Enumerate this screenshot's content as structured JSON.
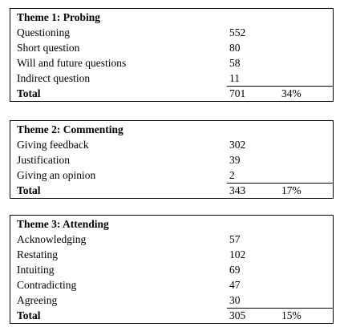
{
  "themes": [
    {
      "title": "Theme 1: Probing",
      "rows": [
        {
          "label": "Questioning",
          "count": 552
        },
        {
          "label": "Short question",
          "count": 80
        },
        {
          "label": "Will and future questions",
          "count": 58
        },
        {
          "label": "Indirect question",
          "count": 11
        }
      ],
      "total": {
        "label": "Total",
        "count": 701,
        "percent": "34%"
      }
    },
    {
      "title": "Theme 2: Commenting",
      "rows": [
        {
          "label": "Giving feedback",
          "count": 302
        },
        {
          "label": "Justification",
          "count": 39
        },
        {
          "label": "Giving an opinion",
          "count": 2
        }
      ],
      "total": {
        "label": "Total",
        "count": 343,
        "percent": "17%"
      }
    },
    {
      "title": "Theme 3: Attending",
      "rows": [
        {
          "label": "Acknowledging",
          "count": 57
        },
        {
          "label": "Restating",
          "count": 102
        },
        {
          "label": "Intuiting",
          "count": 69
        },
        {
          "label": "Contradicting",
          "count": 47
        },
        {
          "label": "Agreeing",
          "count": 30
        }
      ],
      "total": {
        "label": "Total",
        "count": 305,
        "percent": "15%"
      }
    }
  ]
}
